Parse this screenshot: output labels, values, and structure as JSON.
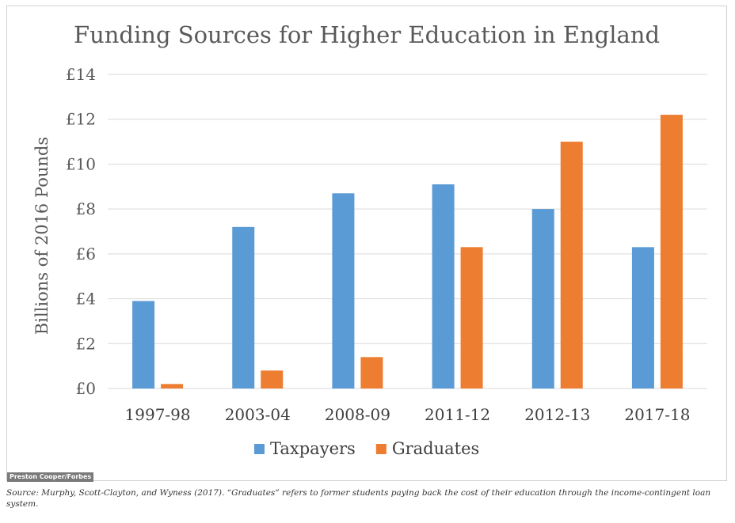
{
  "chart_data": {
    "type": "bar",
    "title": "Funding Sources for Higher Education in England",
    "xlabel": "",
    "ylabel": "Billions of 2016 Pounds",
    "categories": [
      "1997-98",
      "2003-04",
      "2008-09",
      "2011-12",
      "2012-13",
      "2017-18"
    ],
    "series": [
      {
        "name": "Taxpayers",
        "values": [
          3.9,
          7.2,
          8.7,
          9.1,
          8.0,
          6.3
        ],
        "color": "#5b9bd5"
      },
      {
        "name": "Graduates",
        "values": [
          0.2,
          0.8,
          1.4,
          6.3,
          11.0,
          12.2
        ],
        "color": "#ed7d31"
      }
    ],
    "ylim": [
      0,
      14
    ],
    "yticks": [
      0,
      2,
      4,
      6,
      8,
      10,
      12,
      14
    ],
    "ytick_labels": [
      "£0",
      "£2",
      "£4",
      "£6",
      "£8",
      "£10",
      "£12",
      "£14"
    ],
    "grid": true,
    "gridline_color": "#d9d9d9",
    "legend_position": "bottom"
  },
  "credit": "Preston Cooper/Forbes",
  "caption": "Source: Murphy, Scott-Clayton, and Wyness (2017). “Graduates” refers to former students paying back the cost of their education through the income-contingent loan system."
}
